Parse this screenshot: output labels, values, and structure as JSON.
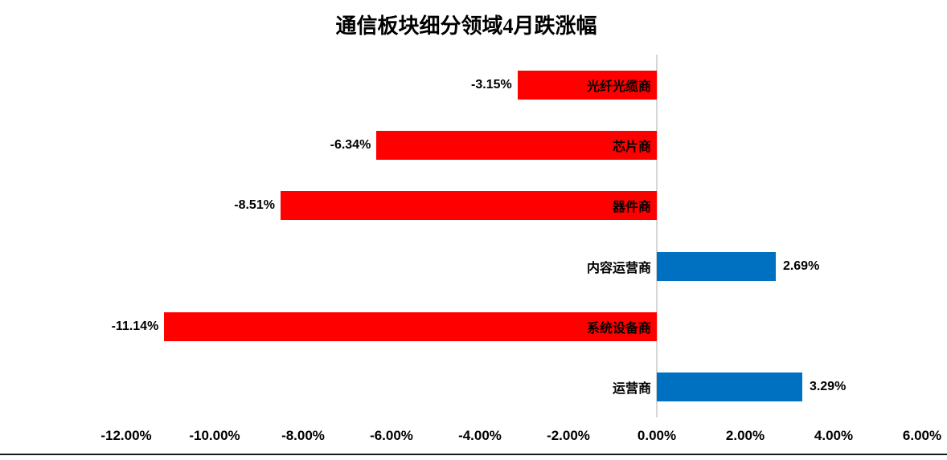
{
  "chart_data": {
    "type": "bar",
    "orientation": "horizontal",
    "title": "通信板块细分领域4月跌涨幅",
    "categories": [
      "光纤光缆商",
      "芯片商",
      "器件商",
      "内容运营商",
      "系统设备商",
      "运营商"
    ],
    "values": [
      -3.15,
      -6.34,
      -8.51,
      2.69,
      -11.14,
      3.29
    ],
    "value_labels": [
      "-3.15%",
      "-6.34%",
      "-8.51%",
      "2.69%",
      "-11.14%",
      "3.29%"
    ],
    "xlabel": "",
    "ylabel": "",
    "xlim": [
      -12,
      6
    ],
    "xticks": [
      -12,
      -10,
      -8,
      -6,
      -4,
      -2,
      0,
      2,
      4,
      6
    ],
    "xtick_labels": [
      "-12.00%",
      "-10.00%",
      "-8.00%",
      "-6.00%",
      "-4.00%",
      "-2.00%",
      "0.00%",
      "2.00%",
      "4.00%",
      "6.00%"
    ],
    "grid": false,
    "legend": false,
    "colors": {
      "negative_bar": "#FF0000",
      "positive_bar": "#0070C0",
      "axis_line": "#D6D6D6",
      "text": "#000000",
      "bottom_border": "#1A1A1A"
    }
  }
}
